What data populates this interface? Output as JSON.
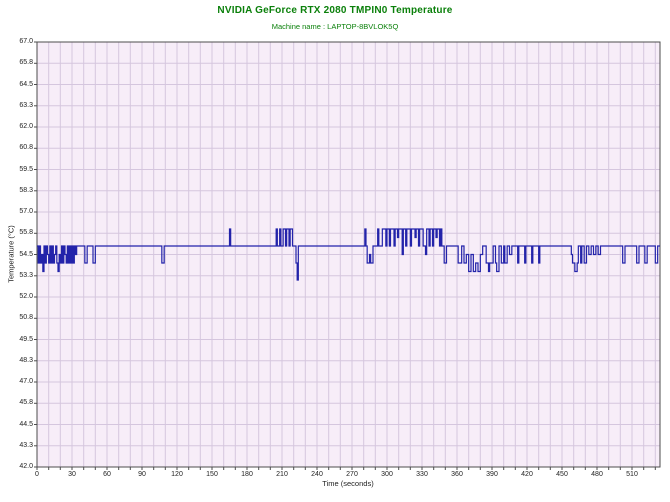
{
  "header": {
    "title": "NVIDIA GeForce RTX 2080 TMPIN0 Temperature",
    "subtitle": "Machine name : LAPTOP-8BVLOK5Q"
  },
  "colors": {
    "title_green": "#0b800b",
    "line_blue": "#2323aa",
    "plot_background": "#f7edf8",
    "gridline": "#d5c6de",
    "plot_border": "#4d4d4d",
    "tick_text": "#222222"
  },
  "chart_data": {
    "type": "line",
    "title": "NVIDIA GeForce RTX 2080 TMPIN0 Temperature",
    "subtitle": "Machine name : LAPTOP-8BVLOK5Q",
    "xlabel": "Time (seconds)",
    "ylabel": "Temperature (°C)",
    "xlim": [
      0,
      534
    ],
    "ylim": [
      42,
      67
    ],
    "grid": true,
    "legend": "none",
    "x_tick_values": [
      0,
      30,
      60,
      90,
      120,
      150,
      180,
      210,
      240,
      270,
      300,
      330,
      360,
      390,
      420,
      450,
      480,
      510
    ],
    "x_tick_labels": [
      "0",
      "30",
      "60",
      "90",
      "120",
      "150",
      "180",
      "210",
      "240",
      "270",
      "300",
      "330",
      "360",
      "390",
      "420",
      "450",
      "480",
      "510"
    ],
    "x_minor_step": 10,
    "y_tick_values": [
      67,
      65.75,
      64.5,
      63.25,
      62,
      60.75,
      59.5,
      58.25,
      57,
      55.75,
      54.5,
      53.25,
      52,
      50.75,
      49.5,
      48.25,
      47,
      45.75,
      44.5,
      43.25,
      42
    ],
    "y_tick_labels": [
      "67.0",
      "65.8",
      "64.5",
      "63.3",
      "62.0",
      "60.8",
      "59.5",
      "58.3",
      "57.0",
      "55.8",
      "54.5",
      "53.3",
      "52.0",
      "50.8",
      "49.5",
      "48.3",
      "47.0",
      "45.8",
      "44.5",
      "43.3",
      "42.0"
    ],
    "y_minor_step": 1.25,
    "series": [
      {
        "name": "TMPIN0",
        "color": "#2323aa",
        "interpolation": "step-after",
        "points": [
          [
            0,
            55
          ],
          [
            1,
            54
          ],
          [
            2,
            55
          ],
          [
            3,
            54
          ],
          [
            4,
            54.5
          ],
          [
            5,
            53.5
          ],
          [
            6,
            55
          ],
          [
            7,
            54
          ],
          [
            8,
            55
          ],
          [
            9,
            54.5
          ],
          [
            10,
            54
          ],
          [
            11,
            55
          ],
          [
            12,
            54
          ],
          [
            13,
            55
          ],
          [
            14,
            54
          ],
          [
            15,
            54.5
          ],
          [
            16,
            55
          ],
          [
            17,
            54
          ],
          [
            18,
            53.5
          ],
          [
            19,
            54.5
          ],
          [
            20,
            54
          ],
          [
            21,
            55
          ],
          [
            22,
            54
          ],
          [
            23,
            55
          ],
          [
            24,
            54.5
          ],
          [
            25,
            54
          ],
          [
            26,
            55
          ],
          [
            27,
            54
          ],
          [
            28,
            55
          ],
          [
            29,
            54
          ],
          [
            30,
            55
          ],
          [
            31,
            54
          ],
          [
            32,
            55
          ],
          [
            33,
            54.5
          ],
          [
            34,
            55
          ],
          [
            35,
            55
          ],
          [
            41,
            54
          ],
          [
            43,
            55
          ],
          [
            48,
            54
          ],
          [
            50,
            55
          ],
          [
            107,
            54
          ],
          [
            109,
            55
          ],
          [
            165,
            56
          ],
          [
            166,
            55
          ],
          [
            205,
            56
          ],
          [
            206,
            55
          ],
          [
            208,
            56
          ],
          [
            209,
            55
          ],
          [
            211,
            56
          ],
          [
            213,
            55
          ],
          [
            214,
            56
          ],
          [
            216,
            55
          ],
          [
            217,
            56
          ],
          [
            219,
            55
          ],
          [
            222,
            54
          ],
          [
            223,
            53
          ],
          [
            224,
            55
          ],
          [
            281,
            56
          ],
          [
            282,
            55
          ],
          [
            283,
            54
          ],
          [
            285,
            54.5
          ],
          [
            286,
            54
          ],
          [
            288,
            55
          ],
          [
            292,
            56
          ],
          [
            293,
            55
          ],
          [
            296,
            56
          ],
          [
            299,
            55
          ],
          [
            300,
            56
          ],
          [
            302,
            55
          ],
          [
            303,
            56
          ],
          [
            306,
            55
          ],
          [
            307,
            56
          ],
          [
            309,
            55.5
          ],
          [
            310,
            56
          ],
          [
            313,
            54.5
          ],
          [
            314,
            56
          ],
          [
            316,
            55
          ],
          [
            317,
            56
          ],
          [
            320,
            55
          ],
          [
            321,
            56
          ],
          [
            324,
            55.5
          ],
          [
            325,
            56
          ],
          [
            327,
            55
          ],
          [
            328,
            56
          ],
          [
            331,
            55
          ],
          [
            333,
            54.5
          ],
          [
            334,
            56
          ],
          [
            336,
            55
          ],
          [
            337,
            56
          ],
          [
            339,
            55
          ],
          [
            340,
            56
          ],
          [
            342,
            55.5
          ],
          [
            343,
            56
          ],
          [
            345,
            55
          ],
          [
            346,
            56
          ],
          [
            347,
            55
          ],
          [
            349,
            54
          ],
          [
            351,
            55
          ],
          [
            361,
            54
          ],
          [
            364,
            55
          ],
          [
            366,
            54
          ],
          [
            368,
            54.5
          ],
          [
            370,
            53.5
          ],
          [
            372,
            54.5
          ],
          [
            374,
            53.5
          ],
          [
            376,
            54
          ],
          [
            378,
            53.5
          ],
          [
            380,
            54.5
          ],
          [
            382,
            55
          ],
          [
            385,
            54
          ],
          [
            387,
            53.5
          ],
          [
            388,
            54
          ],
          [
            391,
            55
          ],
          [
            393,
            54
          ],
          [
            394,
            53.5
          ],
          [
            396,
            55
          ],
          [
            398,
            54
          ],
          [
            400,
            55
          ],
          [
            401,
            54
          ],
          [
            403,
            55
          ],
          [
            405,
            54.5
          ],
          [
            407,
            55
          ],
          [
            412,
            54
          ],
          [
            413,
            55
          ],
          [
            418,
            54
          ],
          [
            419,
            55
          ],
          [
            424,
            54
          ],
          [
            425,
            55
          ],
          [
            430,
            54
          ],
          [
            431,
            55
          ],
          [
            458,
            54.5
          ],
          [
            459,
            54
          ],
          [
            461,
            53.5
          ],
          [
            463,
            54
          ],
          [
            464,
            55
          ],
          [
            466,
            54
          ],
          [
            467,
            55
          ],
          [
            469,
            54
          ],
          [
            471,
            55
          ],
          [
            473,
            54.5
          ],
          [
            475,
            55
          ],
          [
            477,
            54.5
          ],
          [
            479,
            55
          ],
          [
            481,
            54.5
          ],
          [
            483,
            55
          ],
          [
            502,
            54
          ],
          [
            504,
            55
          ],
          [
            514,
            54
          ],
          [
            516,
            55
          ],
          [
            521,
            54
          ],
          [
            523,
            55
          ],
          [
            530,
            54
          ],
          [
            532,
            55
          ],
          [
            534,
            55
          ]
        ]
      }
    ]
  }
}
